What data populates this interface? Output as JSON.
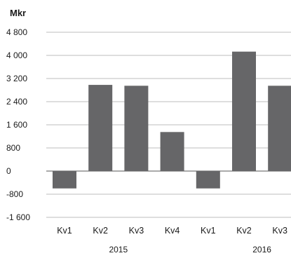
{
  "chart_data": {
    "type": "bar",
    "unit_label": "Mkr",
    "categories": [
      "Kv1",
      "Kv2",
      "Kv3",
      "Kv4",
      "Kv1",
      "Kv2",
      "Kv3"
    ],
    "groups": [
      {
        "label": "2015",
        "span": [
          0,
          3
        ]
      },
      {
        "label": "2016",
        "span": [
          4,
          6
        ]
      }
    ],
    "values": [
      -600,
      2980,
      2950,
      1350,
      -600,
      4130,
      2950
    ],
    "yticks": [
      4800,
      4000,
      3200,
      2400,
      1600,
      800,
      0,
      -800,
      -1600
    ],
    "ytick_labels": [
      "4 800",
      "4 000",
      "3 200",
      "2 400",
      "1 600",
      "800",
      "0",
      "-800",
      "-1 600"
    ],
    "ylim": [
      -1600,
      4800
    ],
    "grid": true,
    "bar_color": "#666668"
  }
}
